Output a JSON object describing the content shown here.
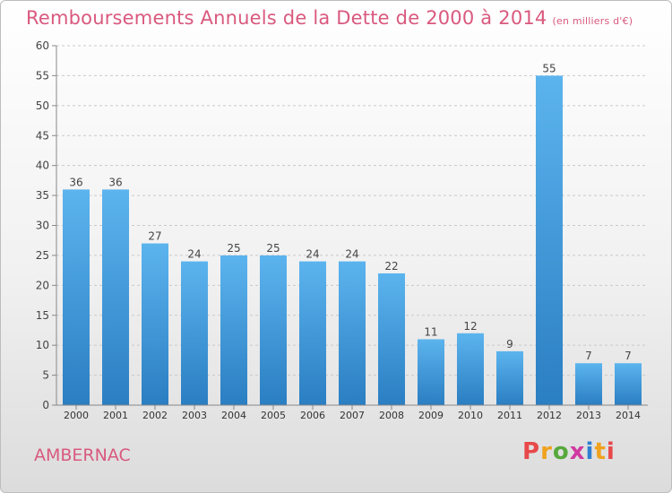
{
  "header": {
    "title": "Remboursements Annuels de la Dette de 2000 à 2014",
    "subtitle": "(en milliers d'€)"
  },
  "footer": {
    "city": "AMBERNAC",
    "logo_text": "Proxiti"
  },
  "colors": {
    "title": "#d9597e",
    "bar_top": "#5cb4ee",
    "bar_bottom": "#2a7ec2",
    "logo": [
      "#e8484a",
      "#f0a21d",
      "#56a93b",
      "#d03aa0",
      "#2f7fd1",
      "#f0a21d",
      "#e8484a"
    ]
  },
  "chart_data": {
    "type": "bar",
    "categories": [
      "2000",
      "2001",
      "2002",
      "2003",
      "2004",
      "2005",
      "2006",
      "2007",
      "2008",
      "2009",
      "2010",
      "2011",
      "2012",
      "2013",
      "2014"
    ],
    "values": [
      36,
      36,
      27,
      24,
      25,
      25,
      24,
      24,
      22,
      11,
      12,
      9,
      55,
      7,
      7
    ],
    "data_labels": [
      "36",
      "36",
      "27",
      "24",
      "25",
      "25",
      "24",
      "24",
      "22",
      "11",
      "12",
      "9",
      "55",
      "7",
      "7"
    ],
    "ylim": [
      0,
      60
    ],
    "yticks": [
      0,
      5,
      10,
      15,
      20,
      25,
      30,
      35,
      40,
      45,
      50,
      55,
      60
    ],
    "grid": "horizontal dashed",
    "legend": "none"
  }
}
